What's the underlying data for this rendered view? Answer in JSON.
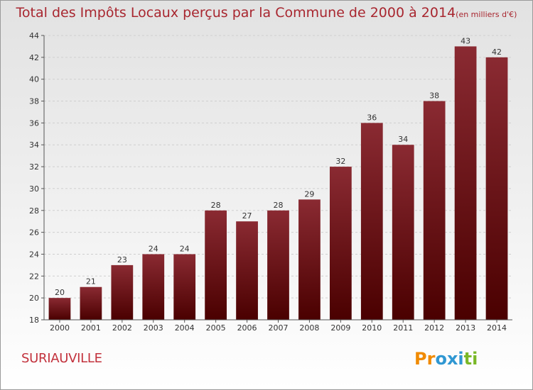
{
  "title": "Total des Impôts Locaux perçus par la Commune de 2000 à 2014",
  "unit_note": "(en milliers d'€)",
  "commune": "SURIAUVILLE",
  "logo": {
    "letters": [
      "P",
      "r",
      "o",
      "x",
      "i",
      "t",
      "i"
    ]
  },
  "colors": {
    "title": "#a8262f",
    "bar_top": "#8a2a32",
    "bar_bottom": "#4a0000",
    "commune": "#c2313c",
    "logo": [
      "#f08a00",
      "#f08a00",
      "#2f97d2",
      "#2f97d2",
      "#2f97d2",
      "#7ab828",
      "#7ab828"
    ]
  },
  "chart_data": {
    "type": "bar",
    "categories": [
      "2000",
      "2001",
      "2002",
      "2003",
      "2004",
      "2005",
      "2006",
      "2007",
      "2008",
      "2009",
      "2010",
      "2011",
      "2012",
      "2013",
      "2014"
    ],
    "values": [
      20,
      21,
      23,
      24,
      24,
      28,
      27,
      28,
      29,
      32,
      36,
      34,
      38,
      43,
      42
    ],
    "ylim": [
      18,
      44
    ],
    "yticks": [
      18,
      20,
      22,
      24,
      26,
      28,
      30,
      32,
      34,
      36,
      38,
      40,
      42,
      44
    ],
    "xlabel": "",
    "ylabel": "",
    "grid": true
  }
}
